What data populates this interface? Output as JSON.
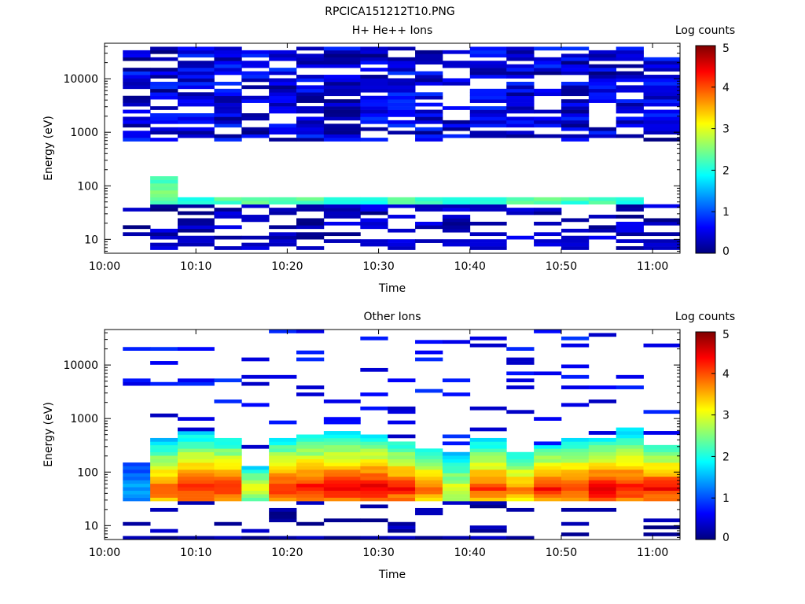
{
  "figure_title": "RPCICA151212T10.PNG",
  "colors": {
    "jet": [
      "#00007f",
      "#0000ff",
      "#007fff",
      "#00ffff",
      "#7fff7f",
      "#ffff00",
      "#ff7f00",
      "#ff0000",
      "#7f0000"
    ]
  },
  "chart_data": [
    {
      "type": "heatmap",
      "title": "H+ He++ Ions",
      "xlabel": "Time",
      "ylabel": "Energy (eV)",
      "y_scale": "log",
      "ylim": [
        5.5,
        46000
      ],
      "xlim": [
        "10:00",
        "11:03"
      ],
      "x_ticks": [
        "10:00",
        "10:10",
        "10:20",
        "10:30",
        "10:40",
        "10:50",
        "11:00"
      ],
      "y_ticks": [
        "10",
        "100",
        "1000",
        "10000"
      ],
      "colorbar": {
        "label": "Log counts",
        "range": [
          0,
          5
        ],
        "ticks": [
          "0",
          "1",
          "2",
          "3",
          "4",
          "5"
        ]
      },
      "time_bins_start": [
        "10:02",
        "10:05",
        "10:08",
        "10:12",
        "10:15",
        "10:18",
        "10:21",
        "10:24",
        "10:28",
        "10:31",
        "10:34",
        "10:37",
        "10:40",
        "10:44",
        "10:47",
        "10:50",
        "10:53",
        "10:56",
        "10:59"
      ],
      "time_bins_end": [
        "10:05",
        "10:08",
        "10:12",
        "10:15",
        "10:18",
        "10:21",
        "10:24",
        "10:28",
        "10:31",
        "10:34",
        "10:37",
        "10:40",
        "10:44",
        "10:47",
        "10:50",
        "10:53",
        "10:56",
        "10:59",
        "11:03"
      ],
      "band_energy_ranges": [
        {
          "bins": [
            3,
            4,
            5,
            6,
            7,
            8,
            9,
            10,
            11,
            12,
            13,
            14,
            15,
            16,
            17,
            18
          ],
          "emin": 45,
          "emax": 60,
          "level": 2.2
        },
        {
          "bins": [
            2
          ],
          "emin": 45,
          "emax": 160,
          "level": 2.4
        },
        {
          "bins": [
            1,
            2,
            3,
            4,
            5,
            6,
            7,
            8,
            9,
            10,
            11,
            12,
            13,
            14,
            15,
            16,
            17,
            18,
            19
          ],
          "emin": 700,
          "emax": 40000,
          "level": 0.4
        }
      ]
    },
    {
      "type": "heatmap",
      "title": "Other Ions",
      "xlabel": "Time",
      "ylabel": "Energy (eV)",
      "y_scale": "log",
      "ylim": [
        5.5,
        46000
      ],
      "xlim": [
        "10:00",
        "11:03"
      ],
      "x_ticks": [
        "10:00",
        "10:10",
        "10:20",
        "10:30",
        "10:40",
        "10:50",
        "11:00"
      ],
      "y_ticks": [
        "10",
        "100",
        "1000",
        "10000"
      ],
      "colorbar": {
        "label": "Log counts",
        "range": [
          0,
          5
        ],
        "ticks": [
          "0",
          "1",
          "2",
          "3",
          "4",
          "5"
        ]
      },
      "time_bins_start": [
        "10:02",
        "10:05",
        "10:08",
        "10:12",
        "10:15",
        "10:18",
        "10:21",
        "10:24",
        "10:28",
        "10:31",
        "10:34",
        "10:37",
        "10:40",
        "10:44",
        "10:47",
        "10:50",
        "10:53",
        "10:56",
        "10:59"
      ],
      "time_bins_end": [
        "10:05",
        "10:08",
        "10:12",
        "10:15",
        "10:18",
        "10:21",
        "10:24",
        "10:28",
        "10:31",
        "10:34",
        "10:37",
        "10:40",
        "10:44",
        "10:47",
        "10:50",
        "10:53",
        "10:56",
        "10:59",
        "11:03"
      ],
      "column_top_energy": [
        150,
        420,
        600,
        460,
        130,
        460,
        500,
        560,
        520,
        400,
        270,
        240,
        420,
        240,
        340,
        420,
        430,
        640,
        320
      ],
      "column_peak_level": [
        1.5,
        4.0,
        4.2,
        4.3,
        3.0,
        4.2,
        4.4,
        4.4,
        4.5,
        4.3,
        4.0,
        3.0,
        4.1,
        3.8,
        4.3,
        4.2,
        4.5,
        4.3,
        4.4
      ],
      "peak_energy": 50
    }
  ]
}
